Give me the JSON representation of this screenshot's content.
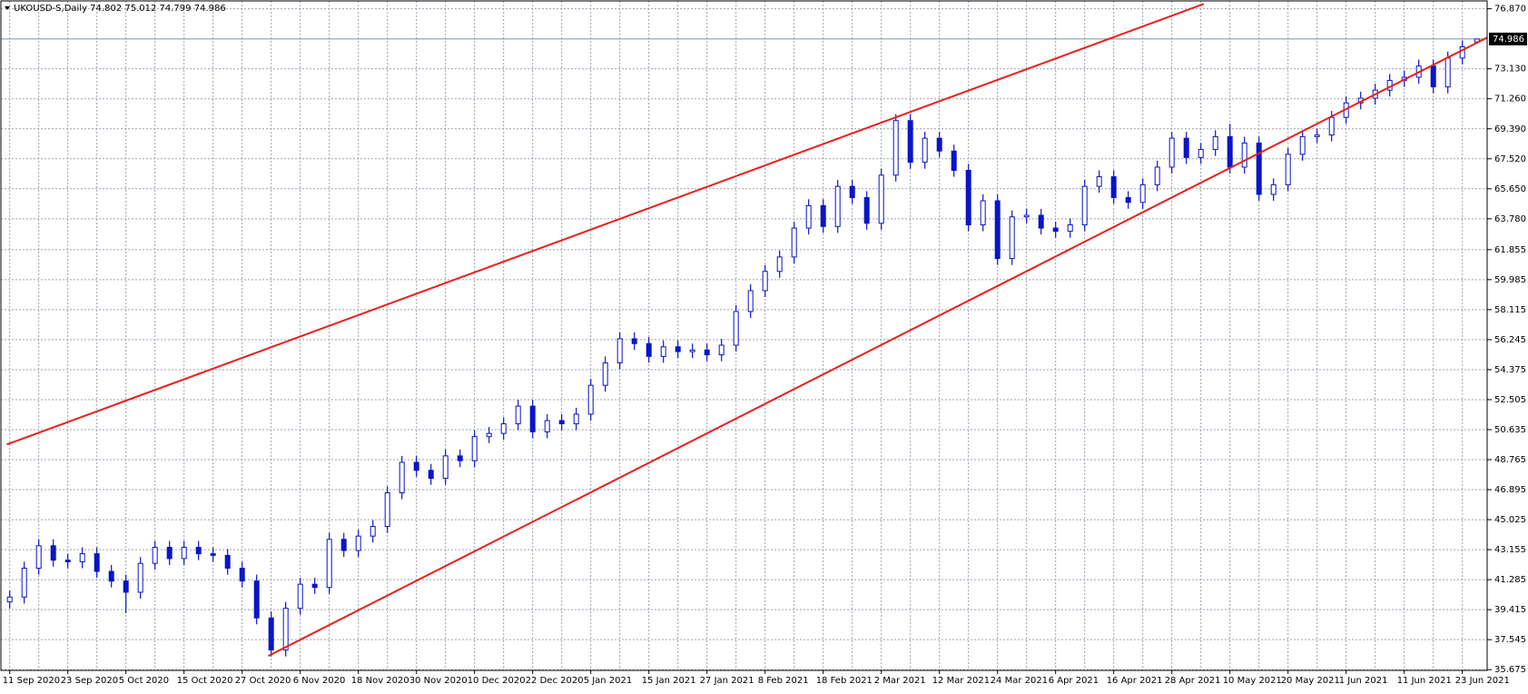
{
  "chart_data": {
    "type": "candlestick",
    "title": "UKOUSD-S,Daily  74.802 75.012 74.799 74.986",
    "color": "#0a14c8",
    "up_fill": "#ffffff",
    "grid": true,
    "grid_color": "#9aa3b0",
    "trendline_color": "#e8201c",
    "categories": [
      "11 Sep 2020",
      null,
      null,
      null,
      "23 Sep 2020",
      null,
      null,
      null,
      "5 Oct 2020",
      null,
      null,
      null,
      "15 Oct 2020",
      null,
      null,
      null,
      "27 Oct 2020",
      null,
      null,
      null,
      "6 Nov 2020",
      null,
      null,
      null,
      "18 Nov 2020",
      null,
      null,
      null,
      "30 Nov 2020",
      null,
      null,
      null,
      "10 Dec 2020",
      null,
      null,
      null,
      "22 Dec 2020",
      null,
      null,
      null,
      "5 Jan 2021",
      null,
      null,
      null,
      "15 Jan 2021",
      null,
      null,
      null,
      "27 Jan 2021",
      null,
      null,
      null,
      "8 Feb 2021",
      null,
      null,
      null,
      "18 Feb 2021",
      null,
      null,
      null,
      "2 Mar 2021",
      null,
      null,
      null,
      "12 Mar 2021",
      null,
      null,
      null,
      "24 Mar 2021",
      null,
      null,
      null,
      "6 Apr 2021",
      null,
      null,
      null,
      "16 Apr 2021",
      null,
      null,
      null,
      "28 Apr 2021",
      null,
      null,
      null,
      "10 May 2021",
      null,
      null,
      null,
      "20 May 2021",
      null,
      null,
      null,
      "1 Jun 2021",
      null,
      null,
      null,
      "11 Jun 2021",
      null,
      null,
      null,
      "23 Jun 2021",
      null
    ],
    "open": [
      39.9,
      40.2,
      42.0,
      43.4,
      42.5,
      42.4,
      42.9,
      41.8,
      41.2,
      40.5,
      42.3,
      43.3,
      42.6,
      43.3,
      42.9,
      42.8,
      42.0,
      41.2,
      38.9,
      36.9,
      39.5,
      41.0,
      40.8,
      43.8,
      43.1,
      44.0,
      44.6,
      46.7,
      48.6,
      48.1,
      47.6,
      49.0,
      48.7,
      50.2,
      50.4,
      51.0,
      52.1,
      50.5,
      51.2,
      51.0,
      51.6,
      53.4,
      54.8,
      56.3,
      56.0,
      55.2,
      55.8,
      55.5,
      55.6,
      55.3,
      55.9,
      58.0,
      59.3,
      60.5,
      61.4,
      63.2,
      64.6,
      63.3,
      65.8,
      65.1,
      63.5,
      66.5,
      69.9,
      67.3,
      68.8,
      68.0,
      66.8,
      63.4,
      64.9,
      61.3,
      63.9,
      64.0,
      63.2,
      63.0,
      63.4,
      65.8,
      66.4,
      65.1,
      64.8,
      65.9,
      67.0,
      68.8,
      67.6,
      68.1,
      68.9,
      67.0,
      68.5,
      65.3,
      65.9,
      67.8,
      68.9,
      69.0,
      70.1,
      71.0,
      71.3,
      71.8,
      72.4,
      72.6,
      73.3,
      72.0,
      73.8,
      74.802
    ],
    "high": [
      40.6,
      42.4,
      43.8,
      43.8,
      42.9,
      43.3,
      43.3,
      42.2,
      41.6,
      42.7,
      43.7,
      43.7,
      43.7,
      43.7,
      43.3,
      43.2,
      42.4,
      41.6,
      39.3,
      39.9,
      41.4,
      41.4,
      44.2,
      44.2,
      44.4,
      45.0,
      47.1,
      49.0,
      49.0,
      48.5,
      49.4,
      49.4,
      50.6,
      50.8,
      51.4,
      52.5,
      52.5,
      51.6,
      51.6,
      52.0,
      53.8,
      55.2,
      56.7,
      56.7,
      56.4,
      56.2,
      56.2,
      56.0,
      56.0,
      56.3,
      58.4,
      59.7,
      60.9,
      61.8,
      63.6,
      65.0,
      65.0,
      66.2,
      66.2,
      65.5,
      66.9,
      70.3,
      70.3,
      69.2,
      69.2,
      68.4,
      67.2,
      65.3,
      65.3,
      64.3,
      64.4,
      64.4,
      63.6,
      63.8,
      66.2,
      66.8,
      66.8,
      65.5,
      66.3,
      67.4,
      69.2,
      69.2,
      68.5,
      69.3,
      69.7,
      68.9,
      68.9,
      66.3,
      68.2,
      69.3,
      69.4,
      70.5,
      71.4,
      71.7,
      72.2,
      72.8,
      73.0,
      73.7,
      73.7,
      74.2,
      74.9,
      75.012
    ],
    "low": [
      39.5,
      39.8,
      41.6,
      42.1,
      42.0,
      42.0,
      41.4,
      40.8,
      39.2,
      40.1,
      41.9,
      42.2,
      42.2,
      42.5,
      42.4,
      41.6,
      40.8,
      38.5,
      36.5,
      36.5,
      39.1,
      40.4,
      40.4,
      42.7,
      42.7,
      43.6,
      44.2,
      46.3,
      47.7,
      47.2,
      47.2,
      48.3,
      48.3,
      49.8,
      50.0,
      50.6,
      50.1,
      50.1,
      50.6,
      50.6,
      51.2,
      53.0,
      54.4,
      55.6,
      54.8,
      54.8,
      55.1,
      55.1,
      54.9,
      54.9,
      55.5,
      57.6,
      58.9,
      60.1,
      61.0,
      62.8,
      62.9,
      62.9,
      64.7,
      63.1,
      63.1,
      66.1,
      66.9,
      66.9,
      67.6,
      66.4,
      63.0,
      63.0,
      60.9,
      60.9,
      63.5,
      62.8,
      62.6,
      62.6,
      63.0,
      65.4,
      64.7,
      64.4,
      64.4,
      65.5,
      66.6,
      67.2,
      67.2,
      67.7,
      66.6,
      66.6,
      64.9,
      64.9,
      65.5,
      67.4,
      68.5,
      68.6,
      69.7,
      70.6,
      70.9,
      71.4,
      72.0,
      72.2,
      71.6,
      71.6,
      73.4,
      74.799
    ],
    "close": [
      40.2,
      42.0,
      43.4,
      42.5,
      42.4,
      42.9,
      41.8,
      41.2,
      40.5,
      42.3,
      43.3,
      42.6,
      43.3,
      42.9,
      42.8,
      42.0,
      41.2,
      38.9,
      36.9,
      39.5,
      41.0,
      40.8,
      43.8,
      43.1,
      44.0,
      44.6,
      46.7,
      48.6,
      48.1,
      47.6,
      49.0,
      48.7,
      50.2,
      50.4,
      51.0,
      52.1,
      50.5,
      51.2,
      51.0,
      51.6,
      53.4,
      54.8,
      56.3,
      56.0,
      55.2,
      55.8,
      55.5,
      55.6,
      55.3,
      55.9,
      58.0,
      59.3,
      60.5,
      61.4,
      63.2,
      64.6,
      63.3,
      65.8,
      65.1,
      63.5,
      66.5,
      69.9,
      67.3,
      68.8,
      68.0,
      66.8,
      63.4,
      64.9,
      61.3,
      63.9,
      64.0,
      63.2,
      63.0,
      63.4,
      65.8,
      66.4,
      65.1,
      64.8,
      65.9,
      67.0,
      68.8,
      67.6,
      68.1,
      68.9,
      67.0,
      68.5,
      65.3,
      65.9,
      67.8,
      68.9,
      69.0,
      70.1,
      71.0,
      71.3,
      71.8,
      72.4,
      72.6,
      73.3,
      72.0,
      73.8,
      74.5,
      74.986
    ],
    "ylim": [
      35.63,
      77.36
    ],
    "yticks": [
      35.675,
      37.545,
      39.415,
      41.285,
      43.155,
      45.025,
      46.895,
      48.765,
      50.635,
      52.505,
      54.375,
      56.245,
      58.115,
      59.985,
      61.855,
      {
        "value": 63.78,
        "label": "63.780"
      },
      {
        "value": 65.65,
        "label": "65.650"
      },
      {
        "value": 67.52,
        "label": "67.520"
      },
      {
        "value": 69.39,
        "label": "69.390"
      },
      {
        "value": 71.26,
        "label": "71.260"
      },
      {
        "value": 73.13,
        "label": "73.130"
      },
      {
        "value": 76.87,
        "label": "76.870"
      }
    ],
    "current_price": 74.986,
    "trendlines": [
      {
        "x": [
          -0.2,
          82.2
        ],
        "y": [
          49.71,
          77.17
        ]
      },
      {
        "x": [
          17.8,
          102.3
        ],
        "y": [
          36.53,
          75.35
        ]
      }
    ]
  }
}
